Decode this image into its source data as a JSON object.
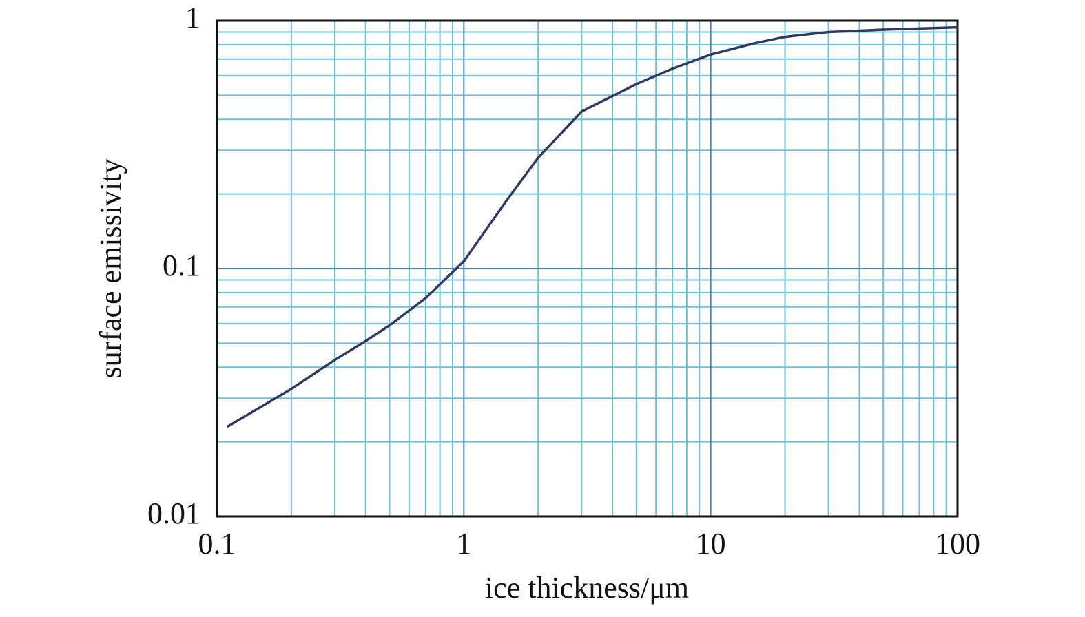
{
  "chart_data": {
    "type": "line",
    "xlabel": "ice thickness/μm",
    "ylabel": "surface emissivity",
    "x": [
      0.11,
      0.2,
      0.3,
      0.4,
      0.5,
      0.7,
      1,
      1.5,
      2,
      3,
      5,
      7,
      10,
      15,
      20,
      30,
      50,
      100
    ],
    "series": [
      {
        "color": "#2e3a5e",
        "values": [
          0.023,
          0.0327,
          0.0428,
          0.051,
          0.059,
          0.076,
          0.107,
          0.19,
          0.28,
          0.43,
          0.555,
          0.64,
          0.73,
          0.81,
          0.86,
          0.9,
          0.92,
          0.94
        ]
      }
    ],
    "xscale": "log",
    "yscale": "log",
    "xlim": [
      0.1,
      100
    ],
    "ylim": [
      0.01,
      1
    ],
    "xticks": [
      0.1,
      1,
      10,
      100
    ],
    "yticks": [
      0.01,
      0.1,
      1
    ],
    "grid": true,
    "minor_grid": true,
    "grid_color": "#6cc0d8",
    "major_grid_color": "#4a7fa8"
  }
}
